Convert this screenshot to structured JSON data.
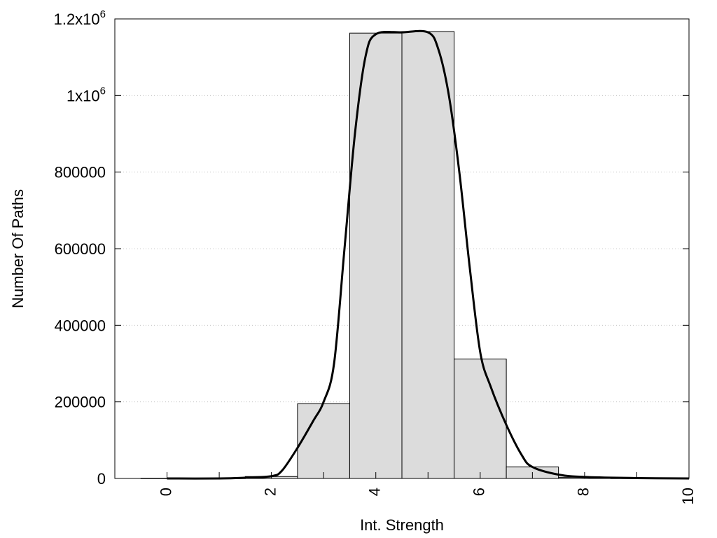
{
  "chart_data": {
    "type": "bar",
    "title": "",
    "xlabel": "Int. Strength",
    "ylabel": "Number Of Paths",
    "xlim": [
      -1,
      10
    ],
    "ylim": [
      0,
      1200000
    ],
    "bar_width": 1,
    "x": [
      0,
      1,
      2,
      3,
      4,
      5,
      6,
      7,
      8,
      9
    ],
    "values": [
      500,
      500,
      5000,
      195000,
      1163000,
      1167000,
      312000,
      30000,
      3000,
      500
    ],
    "curve": {
      "x": [
        0,
        1,
        1.5,
        2,
        2.2,
        2.5,
        2.8,
        3.0,
        3.2,
        3.4,
        3.6,
        3.8,
        4.0,
        4.5,
        5.0,
        5.2,
        5.4,
        5.6,
        5.8,
        6.0,
        6.2,
        6.5,
        6.8,
        7.0,
        7.5,
        8.0,
        9.0,
        10.0
      ],
      "y": [
        0,
        0,
        2000,
        6000,
        20000,
        80000,
        150000,
        200000,
        300000,
        600000,
        900000,
        1100000,
        1160000,
        1165000,
        1165000,
        1120000,
        1000000,
        800000,
        550000,
        330000,
        240000,
        140000,
        60000,
        30000,
        10000,
        4000,
        1000,
        0
      ]
    },
    "xticks": [
      0,
      2,
      4,
      6,
      8,
      10
    ],
    "xtick_labels": [
      "0",
      "2",
      "4",
      "6",
      "8",
      "10"
    ],
    "yticks": [
      0,
      200000,
      400000,
      600000,
      800000,
      1000000,
      1200000
    ],
    "ytick_labels": [
      {
        "base": "0",
        "sup": ""
      },
      {
        "base": "200000",
        "sup": ""
      },
      {
        "base": "400000",
        "sup": ""
      },
      {
        "base": "600000",
        "sup": ""
      },
      {
        "base": "800000",
        "sup": ""
      },
      {
        "base": "1x10",
        "sup": "6"
      },
      {
        "base": "1.2x10",
        "sup": "6"
      }
    ],
    "grid": true,
    "legend": "none",
    "colors": {
      "bar_fill": "#dcdcdc",
      "bar_stroke": "#000000",
      "curve": "#000000",
      "grid": "#bbbbbb",
      "frame": "#000000"
    }
  }
}
